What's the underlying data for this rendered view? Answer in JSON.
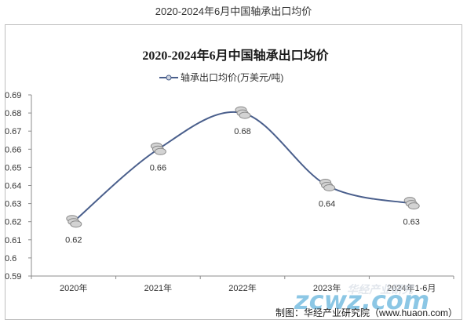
{
  "page": {
    "title": "2020-2024年6月中国轴承出口均价"
  },
  "footer": {
    "credit": "制图：华经产业研究院（www.huaon.com）"
  },
  "watermark": {
    "text": "zcwz.com",
    "subtext": "华经产业研究"
  },
  "chart_data": {
    "type": "line",
    "title": "2020-2024年6月中国轴承出口均价",
    "categories": [
      "2020年",
      "2021年",
      "2022年",
      "2023年",
      "2024年1-6月"
    ],
    "series": [
      {
        "name": "轴承出口均价(万美元/吨)",
        "values": [
          0.62,
          0.66,
          0.68,
          0.64,
          0.63
        ],
        "color": "#4a5f8c"
      }
    ],
    "data_labels": [
      "0.62",
      "0.66",
      "0.68",
      "0.64",
      "0.63"
    ],
    "ylim": [
      0.59,
      0.69
    ],
    "yticks": [
      "0.69",
      "0.68",
      "0.67",
      "0.66",
      "0.65",
      "0.64",
      "0.63",
      "0.62",
      "0.61",
      "0.6",
      "0.59"
    ],
    "smooth": true,
    "grid": false,
    "legend": "top-center"
  }
}
